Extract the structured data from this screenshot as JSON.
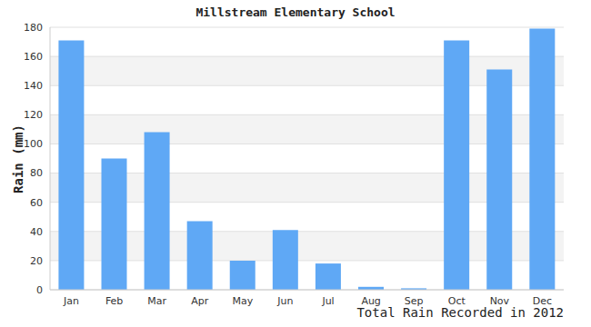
{
  "chart_data": {
    "type": "bar",
    "title": "Millstream Elementary School",
    "y_label": "Rain (mm)",
    "x_label": "Total Rain Recorded in 2012",
    "categories": [
      "Jan",
      "Feb",
      "Mar",
      "Apr",
      "May",
      "Jun",
      "Jul",
      "Aug",
      "Sep",
      "Oct",
      "Nov",
      "Dec"
    ],
    "values": [
      171,
      90,
      108,
      47,
      20,
      41,
      18,
      2,
      1,
      171,
      151,
      179
    ],
    "color": "#5fa8f5",
    "ylim": [
      0,
      180
    ],
    "yticks": [
      0,
      20,
      40,
      60,
      80,
      100,
      120,
      140,
      160,
      180
    ],
    "grid": true
  }
}
